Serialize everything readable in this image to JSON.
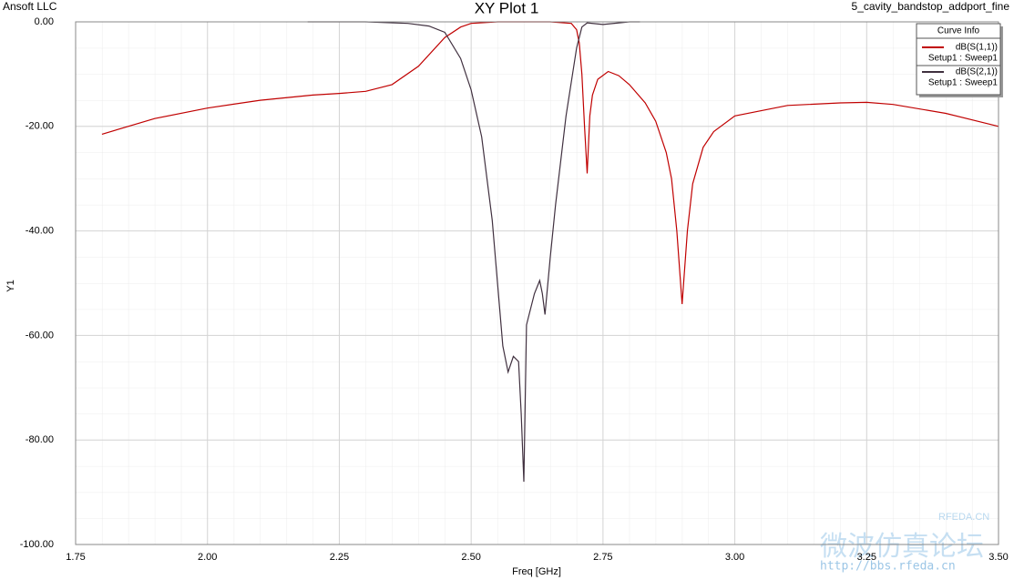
{
  "chart_data": {
    "type": "line",
    "title": "XY Plot 1",
    "company": "Ansoft LLC",
    "design": "5_cavity_bandstop_addport_fine",
    "x_label": "Freq [GHz]",
    "y_label": "Y1",
    "legend_title": "Curve Info",
    "legend": "upper right",
    "grid": true,
    "xlim": [
      1.75,
      3.5
    ],
    "ylim": [
      -100,
      0
    ],
    "xticks": [
      1.75,
      {
        "value": 2,
        "label": "2.00"
      },
      2.25,
      {
        "value": 2.5,
        "label": "2.50"
      },
      2.75,
      {
        "value": 3,
        "label": "3.00"
      },
      3.25,
      {
        "value": 3.5,
        "label": "3.50"
      }
    ],
    "yticks": [
      {
        "value": 0,
        "label": "0.00"
      },
      {
        "value": -20,
        "label": "-20.00"
      },
      {
        "value": -40,
        "label": "-40.00"
      },
      {
        "value": -60,
        "label": "-60.00"
      },
      {
        "value": -80,
        "label": "-80.00"
      },
      {
        "value": -100,
        "label": "-100.00"
      }
    ],
    "series": [
      {
        "name": "dB(S(1,1))",
        "solution": "Setup1 : Sweep1",
        "color": "#c00000",
        "x": [
          1.8,
          1.9,
          2.0,
          2.1,
          2.2,
          2.25,
          2.3,
          2.35,
          2.4,
          2.45,
          2.48,
          2.5,
          2.55,
          2.6,
          2.65,
          2.69,
          2.7,
          2.705,
          2.71,
          2.715,
          2.72,
          2.725,
          2.73,
          2.74,
          2.76,
          2.78,
          2.8,
          2.83,
          2.85,
          2.87,
          2.88,
          2.89,
          2.9,
          2.91,
          2.92,
          2.94,
          2.96,
          3.0,
          3.1,
          3.2,
          3.25,
          3.3,
          3.4,
          3.5
        ],
        "values": [
          -21.5,
          -18.5,
          -16.5,
          -15,
          -14,
          -13.7,
          -13.3,
          -12,
          -8.5,
          -3,
          -1,
          -0.3,
          0,
          0,
          0,
          -0.3,
          -1.5,
          -4,
          -10,
          -20,
          -29,
          -18,
          -14,
          -11,
          -9.5,
          -10.3,
          -12,
          -15.5,
          -19,
          -25,
          -30,
          -40,
          -54,
          -40,
          -31,
          -24,
          -21,
          -18,
          -16,
          -15.5,
          -15.4,
          -15.8,
          -17.5,
          -20
        ]
      },
      {
        "name": "dB(S(2,1))",
        "solution": "Setup1 : Sweep1",
        "color": "#40303f",
        "x": [
          2.19,
          2.3,
          2.38,
          2.42,
          2.45,
          2.48,
          2.5,
          2.52,
          2.54,
          2.56,
          2.57,
          2.58,
          2.59,
          2.595,
          2.6,
          2.605,
          2.61,
          2.62,
          2.63,
          2.635,
          2.64,
          2.65,
          2.66,
          2.68,
          2.7,
          2.71,
          2.72,
          2.75,
          2.8,
          2.82
        ],
        "values": [
          0,
          0,
          -0.3,
          -0.8,
          -2,
          -7,
          -13,
          -22,
          -38,
          -62,
          -67,
          -64,
          -65,
          -75,
          -88,
          -58,
          -56,
          -52,
          -49.5,
          -52,
          -56,
          -45,
          -35,
          -18,
          -5,
          -1,
          -0.2,
          -0.5,
          0,
          0
        ]
      }
    ],
    "watermark": {
      "chinese": "微波仿真论坛",
      "site": "RFEDA.CN",
      "url": "http://bbs.rfeda.cn"
    }
  }
}
